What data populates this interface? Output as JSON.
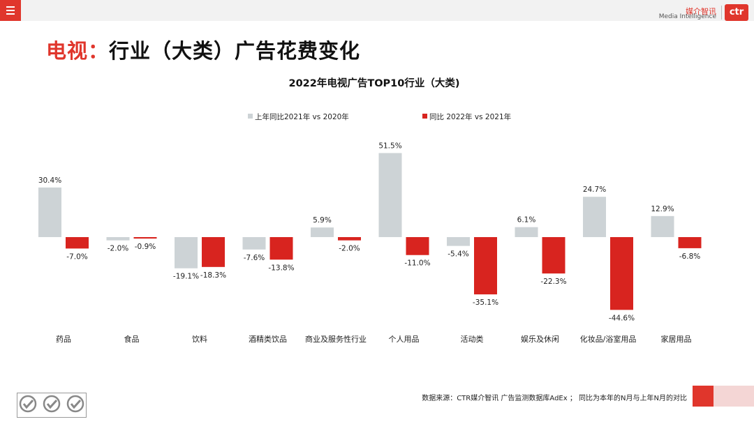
{
  "header": {
    "menu_icon": "hamburger-icon",
    "logo_cn": "媒介智讯",
    "logo_en": "Media Intelligence",
    "logo_mark": "ctr"
  },
  "page": {
    "title_accent": "电视：",
    "title_rest": "行业（大类）广告花费变化"
  },
  "footer": {
    "source": "数据来源：CTR媒介智讯 广告监测数据库AdEx ；  同比为本年的N月与上年N月的对比",
    "cert_icon": "sgs-certification-icon"
  },
  "colors": {
    "accent": "#e0362c",
    "series_2021": "#cdd3d6",
    "series_2022": "#d8241f"
  },
  "chart_data": {
    "type": "bar",
    "title": "2022年电视广告TOP10行业（大类)",
    "categories": [
      "药品",
      "食品",
      "饮料",
      "酒精类饮品",
      "商业及服务性行业",
      "个人用品",
      "活动类",
      "娱乐及休闲",
      "化妆品/浴室用品",
      "家居用品"
    ],
    "series": [
      {
        "name": "上年同比2021年 vs 2020年",
        "color": "#cdd3d6",
        "values": [
          30.4,
          -2.0,
          -19.1,
          -7.6,
          5.9,
          51.5,
          -5.4,
          6.1,
          24.7,
          12.9
        ],
        "labels": [
          "30.4%",
          "-2.0%",
          "-19.1%",
          "-7.6%",
          "5.9%",
          "51.5%",
          "-5.4%",
          "6.1%",
          "24.7%",
          "12.9%"
        ]
      },
      {
        "name": "同比 2022年 vs 2021年",
        "color": "#d8241f",
        "values": [
          -7.0,
          -0.9,
          -18.3,
          -13.8,
          -2.0,
          -11.0,
          -35.1,
          -22.3,
          -44.6,
          -6.8
        ],
        "labels": [
          "-7.0%",
          "-0.9%",
          "-18.3%",
          "-13.8%",
          "-2.0%",
          "-11.0%",
          "-35.1%",
          "-22.3%",
          "-44.6%",
          "-6.8%"
        ]
      }
    ],
    "ylabel": "",
    "xlabel": "",
    "ylim": [
      -50,
      60
    ],
    "grid": false,
    "legend_position": "top-center"
  }
}
